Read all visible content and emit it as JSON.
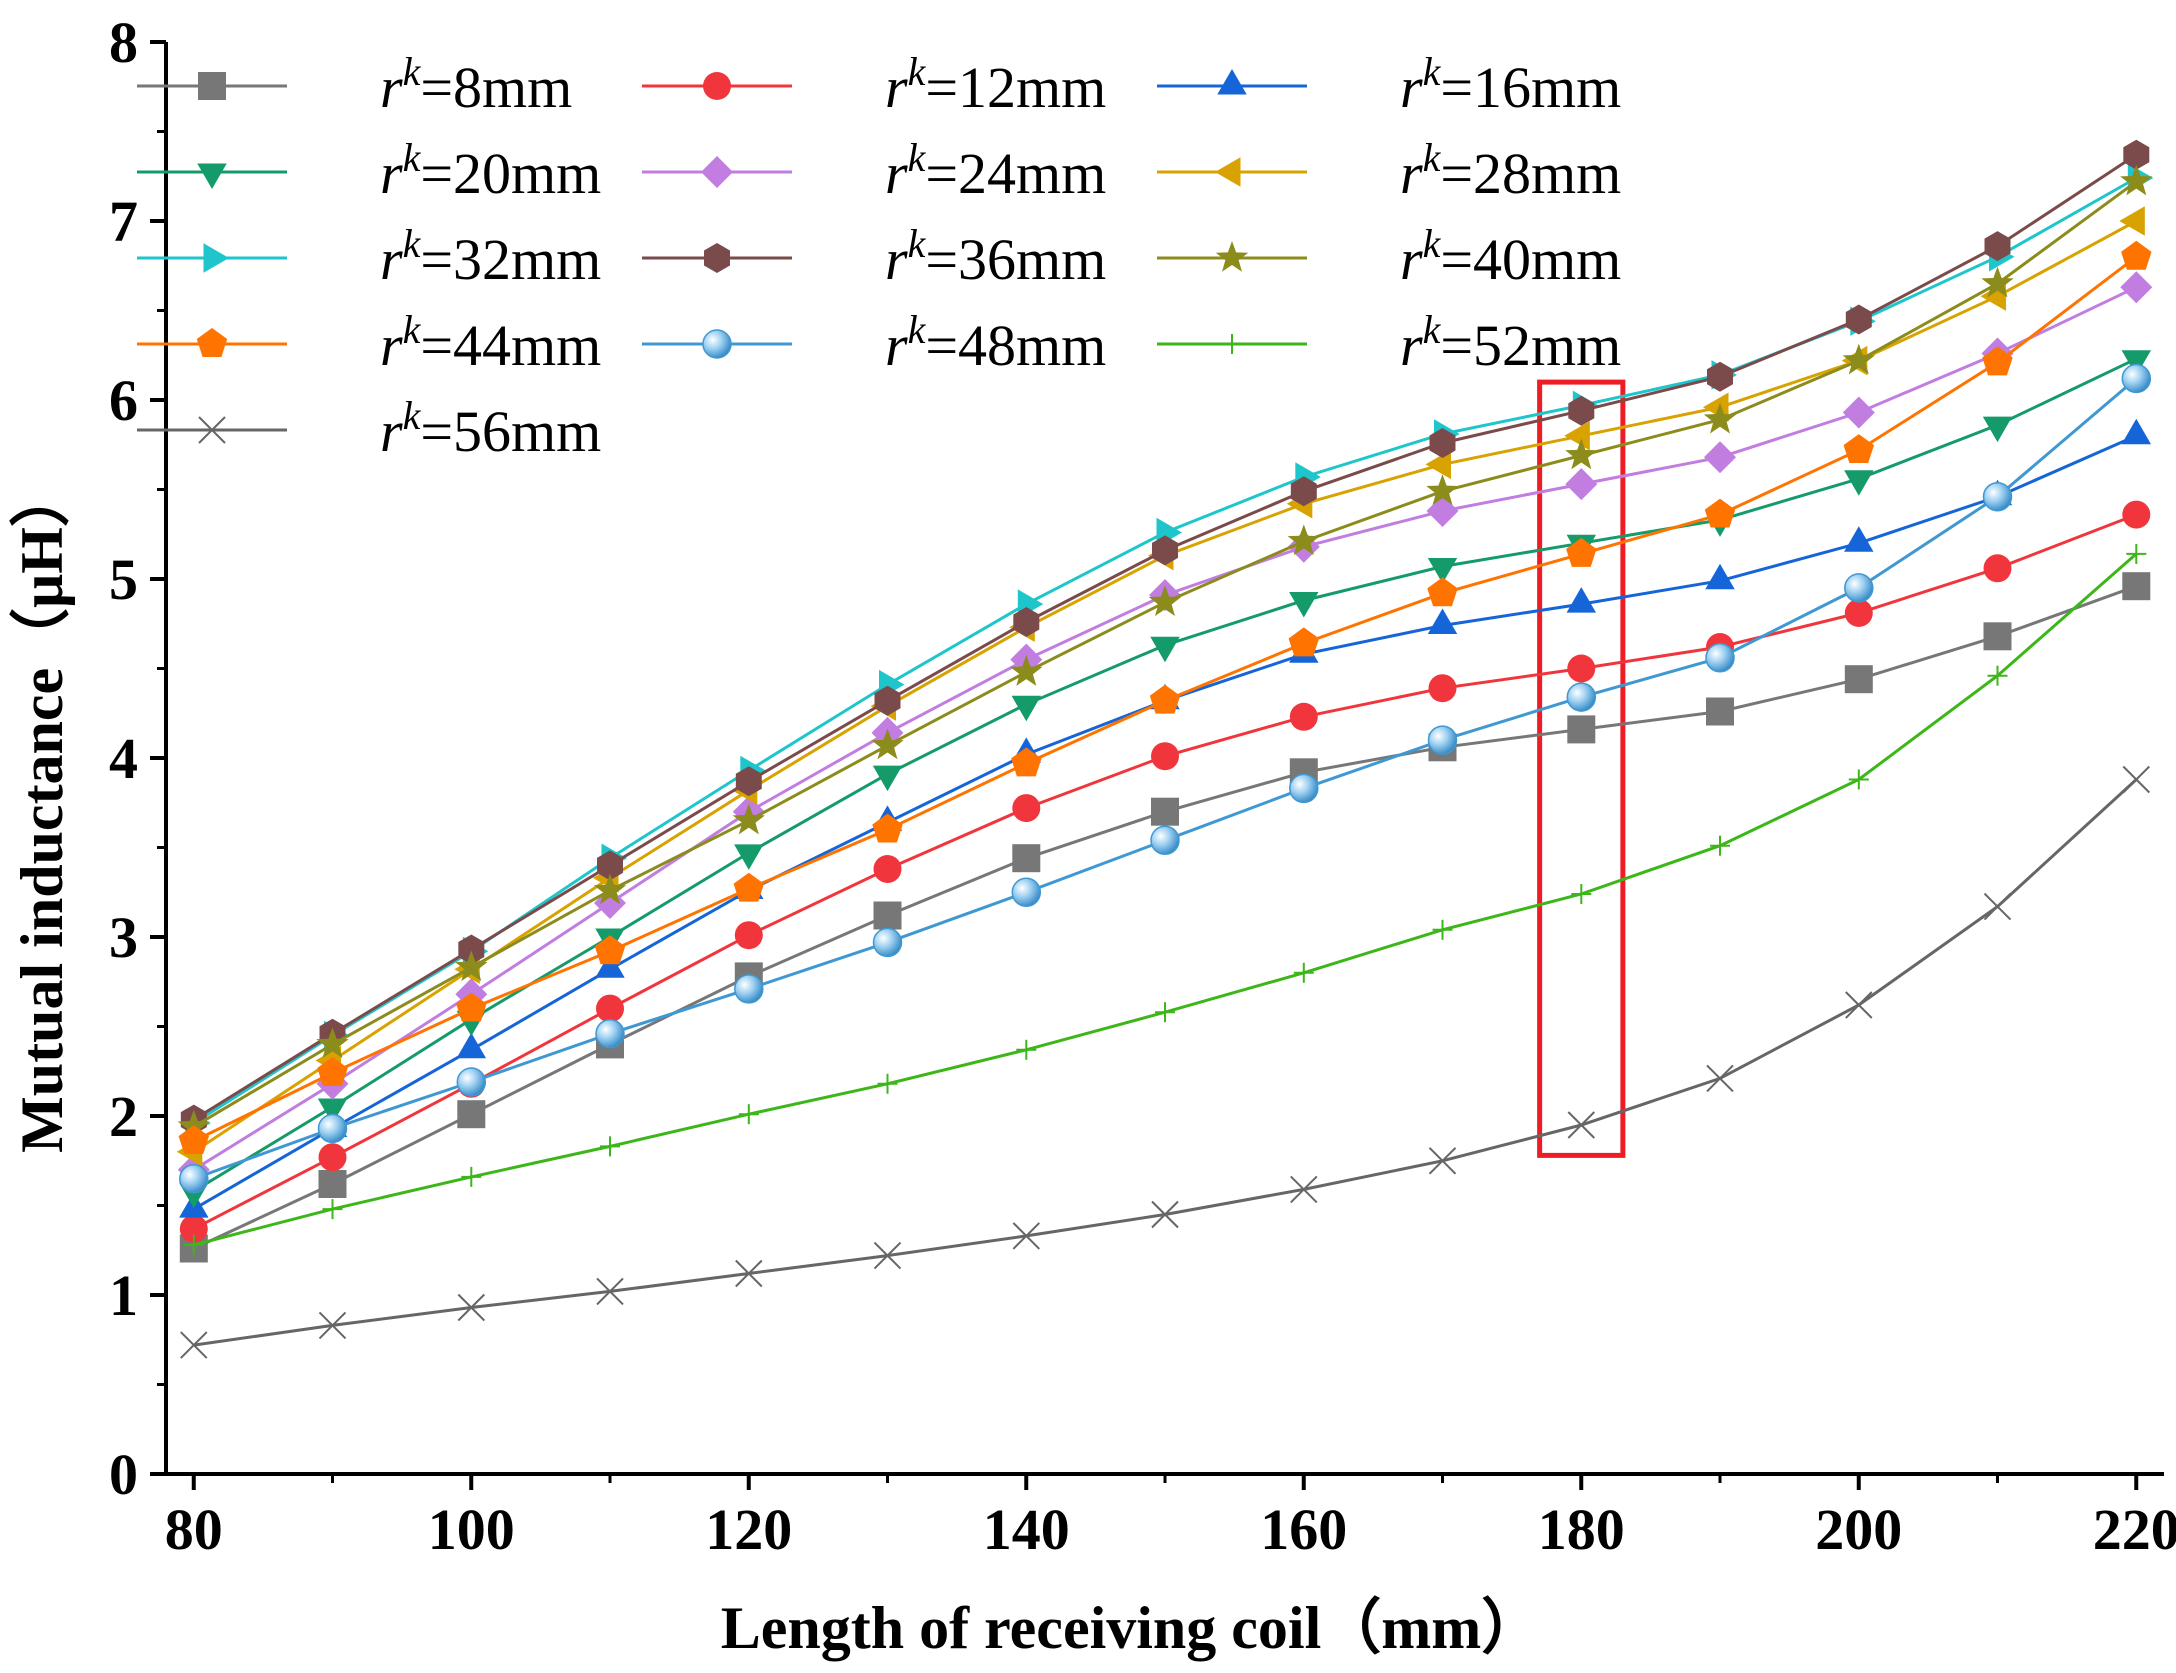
{
  "chart_data": {
    "type": "line",
    "title": "",
    "xlabel": "Length of receiving coil（mm）",
    "ylabel": "Mutual inductance（μH）",
    "xlim": [
      78,
      222
    ],
    "ylim": [
      0,
      8
    ],
    "x_ticks": [
      "80",
      "100",
      "120",
      "140",
      "160",
      "180",
      "200",
      "220"
    ],
    "y_ticks": [
      "0",
      "1",
      "2",
      "3",
      "4",
      "5",
      "6",
      "7",
      "8"
    ],
    "x": [
      80,
      90,
      100,
      110,
      120,
      130,
      140,
      150,
      160,
      170,
      180,
      190,
      200,
      210,
      220
    ],
    "legend_position": "top-left",
    "highlight": {
      "x_range": [
        177,
        183
      ],
      "y_range": [
        1.78,
        6.1
      ],
      "color": "#ee1c24"
    },
    "series": [
      {
        "name": "r^k=8mm",
        "symbol": "r",
        "sup": "k",
        "label": "=8mm",
        "color": "#777777",
        "marker": "square",
        "values": [
          1.26,
          1.62,
          2.01,
          2.4,
          2.78,
          3.12,
          3.44,
          3.7,
          3.92,
          4.06,
          4.16,
          4.26,
          4.44,
          4.68,
          4.96
        ]
      },
      {
        "name": "r^k=12mm",
        "symbol": "r",
        "sup": "k",
        "label": "=12mm",
        "color": "#f0363c",
        "marker": "circle",
        "values": [
          1.37,
          1.77,
          2.18,
          2.6,
          3.01,
          3.38,
          3.72,
          4.01,
          4.23,
          4.39,
          4.5,
          4.62,
          4.81,
          5.06,
          5.36
        ]
      },
      {
        "name": "r^k=16mm",
        "symbol": "r",
        "sup": "k",
        "label": "=16mm",
        "color": "#1565d8",
        "marker": "triangle-up",
        "values": [
          1.48,
          1.93,
          2.37,
          2.82,
          3.26,
          3.64,
          4.02,
          4.32,
          4.58,
          4.74,
          4.86,
          4.99,
          5.2,
          5.46,
          5.8
        ]
      },
      {
        "name": "r^k=20mm",
        "symbol": "r",
        "sup": "k",
        "label": "=20mm",
        "color": "#159b6a",
        "marker": "triangle-down",
        "values": [
          1.58,
          2.05,
          2.54,
          3.0,
          3.47,
          3.91,
          4.3,
          4.63,
          4.88,
          5.07,
          5.2,
          5.33,
          5.56,
          5.86,
          6.23
        ]
      },
      {
        "name": "r^k=24mm",
        "symbol": "r",
        "sup": "k",
        "label": "=24mm",
        "color": "#c17de0",
        "marker": "diamond",
        "values": [
          1.7,
          2.18,
          2.68,
          3.19,
          3.7,
          4.14,
          4.55,
          4.91,
          5.18,
          5.38,
          5.53,
          5.68,
          5.93,
          6.26,
          6.63
        ]
      },
      {
        "name": "r^k=28mm",
        "symbol": "r",
        "sup": "k",
        "label": "=28mm",
        "color": "#d8a200",
        "marker": "triangle-left",
        "values": [
          1.8,
          2.31,
          2.82,
          3.33,
          3.82,
          4.29,
          4.73,
          5.13,
          5.42,
          5.64,
          5.8,
          5.96,
          6.22,
          6.58,
          7.0
        ]
      },
      {
        "name": "r^k=32mm",
        "symbol": "r",
        "sup": "k",
        "label": "=32mm",
        "color": "#1ec6cc",
        "marker": "triangle-right",
        "values": [
          1.96,
          2.45,
          2.92,
          3.44,
          3.93,
          4.41,
          4.86,
          5.26,
          5.57,
          5.81,
          5.97,
          6.14,
          6.44,
          6.8,
          7.24
        ]
      },
      {
        "name": "r^k=36mm",
        "symbol": "r",
        "sup": "k",
        "label": "=36mm",
        "color": "#7b4a4a",
        "marker": "hexagon",
        "values": [
          1.98,
          2.46,
          2.93,
          3.4,
          3.87,
          4.32,
          4.76,
          5.16,
          5.49,
          5.76,
          5.94,
          6.13,
          6.45,
          6.86,
          7.37
        ]
      },
      {
        "name": "r^k=40mm",
        "symbol": "r",
        "sup": "k",
        "label": "=40mm",
        "color": "#8c8c1c",
        "marker": "star",
        "values": [
          1.94,
          2.4,
          2.83,
          3.26,
          3.65,
          4.07,
          4.48,
          4.87,
          5.21,
          5.49,
          5.69,
          5.89,
          6.22,
          6.65,
          7.22
        ]
      },
      {
        "name": "r^k=44mm",
        "symbol": "r",
        "sup": "k",
        "label": "=44mm",
        "color": "#ff7400",
        "marker": "pentagon",
        "values": [
          1.86,
          2.24,
          2.6,
          2.92,
          3.27,
          3.6,
          3.97,
          4.32,
          4.64,
          4.92,
          5.14,
          5.36,
          5.72,
          6.21,
          6.8
        ]
      },
      {
        "name": "r^k=48mm",
        "symbol": "r",
        "sup": "k",
        "label": "=48mm",
        "color": "#3f98d2",
        "marker": "sphere",
        "values": [
          1.65,
          1.93,
          2.19,
          2.46,
          2.71,
          2.97,
          3.25,
          3.54,
          3.83,
          4.1,
          4.34,
          4.56,
          4.95,
          5.46,
          6.12
        ]
      },
      {
        "name": "r^k=52mm",
        "symbol": "r",
        "sup": "k",
        "label": "=52mm",
        "color": "#3cb619",
        "marker": "plus",
        "values": [
          1.28,
          1.48,
          1.66,
          1.83,
          2.01,
          2.18,
          2.37,
          2.58,
          2.8,
          3.04,
          3.24,
          3.51,
          3.88,
          4.46,
          5.14
        ]
      },
      {
        "name": "r^k=56mm",
        "symbol": "r",
        "sup": "k",
        "label": "=56mm",
        "color": "#666666",
        "marker": "x",
        "values": [
          0.72,
          0.83,
          0.93,
          1.02,
          1.12,
          1.22,
          1.33,
          1.45,
          1.59,
          1.75,
          1.95,
          2.21,
          2.62,
          3.17,
          3.88
        ]
      }
    ]
  }
}
